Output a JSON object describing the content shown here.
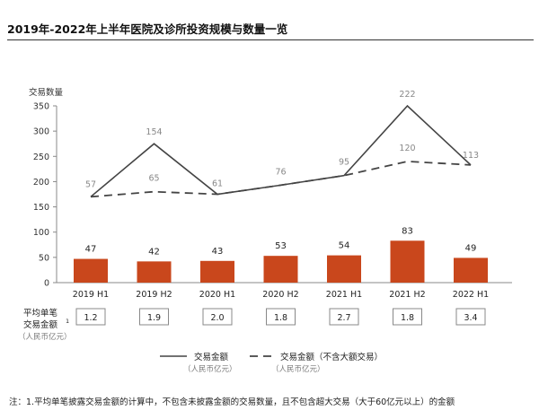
{
  "title": "2019年-2022年上半年医院及诊所投资规模与数量一览",
  "footnote": "注：1.平均单笔披露交易金额的计算中，不包含未披露金额的交易数量，且不包含超大交易（大于60亿元以上）的金额",
  "colors": {
    "bar": "#C9471C",
    "line": "#444444",
    "axis": "#888888",
    "value_gray": "#888888"
  },
  "chart_data": {
    "type": "bar",
    "categories": [
      "2019 H1",
      "2019 H2",
      "2020 H1",
      "2020 H2",
      "2021 H1",
      "2021 H2",
      "2022 H1"
    ],
    "ylabel": "交易数量",
    "ylim": [
      0,
      350
    ],
    "yticks": [
      0,
      50,
      100,
      150,
      200,
      250,
      300,
      350
    ],
    "grid": false,
    "series": [
      {
        "name": "交易数量",
        "type": "bar",
        "values": [
          47,
          42,
          43,
          53,
          54,
          83,
          49
        ]
      },
      {
        "name": "交易金额",
        "type": "line",
        "style": "solid",
        "values": [
          170,
          275,
          175,
          193,
          212,
          350,
          233
        ]
      },
      {
        "name": "交易金额（不含大额交易）",
        "type": "line",
        "style": "dashed",
        "values": [
          170,
          180,
          175,
          193,
          212,
          240,
          233
        ]
      }
    ],
    "line_labels_solid": [
      "57",
      "154",
      "61",
      "76",
      "95",
      "222",
      "113"
    ],
    "line_labels_dashed": [
      "",
      "65",
      "",
      "",
      "",
      "120",
      ""
    ],
    "avg_label_line1": "平均单笔",
    "avg_label_line2": "交易金额",
    "avg_label_sup": "1",
    "avg_label_unit": "（人民币亿元）",
    "avg_values": [
      "1.2",
      "1.9",
      "2.0",
      "1.8",
      "2.7",
      "1.8",
      "3.4"
    ],
    "legend": {
      "position": "bottom-center",
      "solid_label": "交易金额",
      "solid_sub": "（人民币亿元）",
      "dashed_label": "交易金额（不含大额交易）",
      "dashed_sub": "（人民币亿元）"
    }
  }
}
